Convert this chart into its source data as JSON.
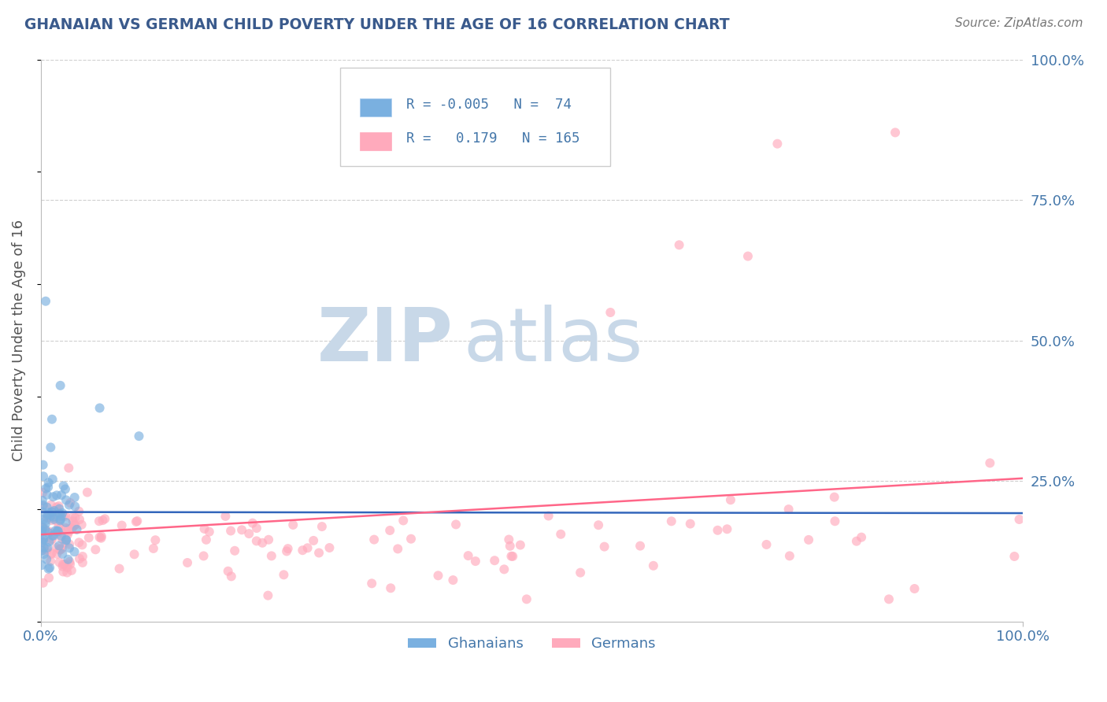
{
  "title": "GHANAIAN VS GERMAN CHILD POVERTY UNDER THE AGE OF 16 CORRELATION CHART",
  "source": "Source: ZipAtlas.com",
  "ylabel": "Child Poverty Under the Age of 16",
  "title_color": "#3a5a8c",
  "source_color": "#777777",
  "axis_label_color": "#555555",
  "tick_color": "#4477aa",
  "ghanaian_color": "#7ab0e0",
  "german_color": "#ffaabc",
  "ghanaian_line_color": "#3366bb",
  "german_line_color": "#ff6688",
  "grid_color": "#bbbbbb",
  "watermark_zip_color": "#c8d8e8",
  "watermark_atlas_color": "#c8d8e8",
  "background_color": "#ffffff",
  "R_ghanaian": -0.005,
  "N_ghanaian": 74,
  "R_german": 0.179,
  "N_german": 165,
  "legend_color": "#4477aa"
}
